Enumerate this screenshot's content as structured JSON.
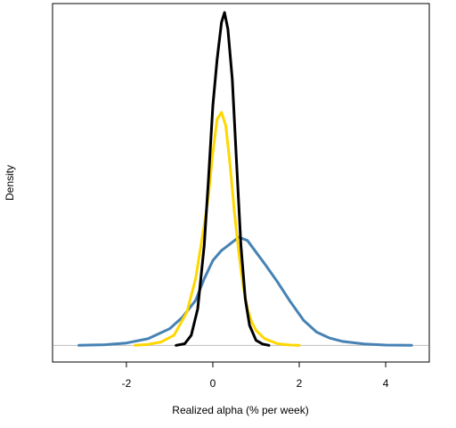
{
  "chart_data": {
    "type": "line",
    "title": "",
    "xlabel": "Realized alpha (% per week)",
    "ylabel": "Density",
    "xlim": [
      -3.4,
      4.7
    ],
    "ylim": [
      -0.05,
      1.0
    ],
    "x_ticks": [
      -2,
      0,
      2,
      4
    ],
    "x_tick_labels": [
      "-2",
      "0",
      "2",
      "4"
    ],
    "y_ticks_shown": false,
    "grid": false,
    "legend": "none",
    "baseline": 0,
    "baseline_color": "#bebebe",
    "series": [
      {
        "color": "#4682b4",
        "x": [
          -3.1,
          -2.5,
          -2.0,
          -1.5,
          -1.0,
          -0.7,
          -0.4,
          -0.2,
          0.0,
          0.2,
          0.4,
          0.6,
          0.8,
          1.0,
          1.2,
          1.5,
          1.8,
          2.1,
          2.4,
          2.7,
          3.0,
          3.5,
          4.0,
          4.6
        ],
        "y": [
          0.0,
          0.002,
          0.007,
          0.02,
          0.05,
          0.085,
          0.135,
          0.2,
          0.255,
          0.285,
          0.305,
          0.325,
          0.315,
          0.28,
          0.245,
          0.19,
          0.13,
          0.075,
          0.04,
          0.022,
          0.012,
          0.004,
          0.001,
          0.0
        ]
      },
      {
        "color": "#ffd700",
        "x": [
          -1.8,
          -1.5,
          -1.2,
          -0.9,
          -0.6,
          -0.4,
          -0.2,
          -0.1,
          0.0,
          0.1,
          0.2,
          0.3,
          0.4,
          0.5,
          0.6,
          0.7,
          0.8,
          0.9,
          1.0,
          1.2,
          1.5,
          1.8,
          2.0
        ],
        "y": [
          0.0,
          0.003,
          0.01,
          0.03,
          0.1,
          0.2,
          0.36,
          0.45,
          0.58,
          0.68,
          0.7,
          0.66,
          0.54,
          0.4,
          0.28,
          0.18,
          0.11,
          0.07,
          0.045,
          0.02,
          0.005,
          0.001,
          0.0
        ]
      },
      {
        "color": "#000000",
        "x": [
          -0.85,
          -0.65,
          -0.5,
          -0.35,
          -0.2,
          -0.1,
          0.0,
          0.1,
          0.2,
          0.27,
          0.35,
          0.45,
          0.55,
          0.65,
          0.75,
          0.85,
          1.0,
          1.15,
          1.3
        ],
        "y": [
          0.0,
          0.005,
          0.03,
          0.11,
          0.3,
          0.5,
          0.72,
          0.86,
          0.97,
          1.0,
          0.95,
          0.8,
          0.55,
          0.3,
          0.14,
          0.06,
          0.015,
          0.004,
          0.0
        ]
      }
    ]
  }
}
